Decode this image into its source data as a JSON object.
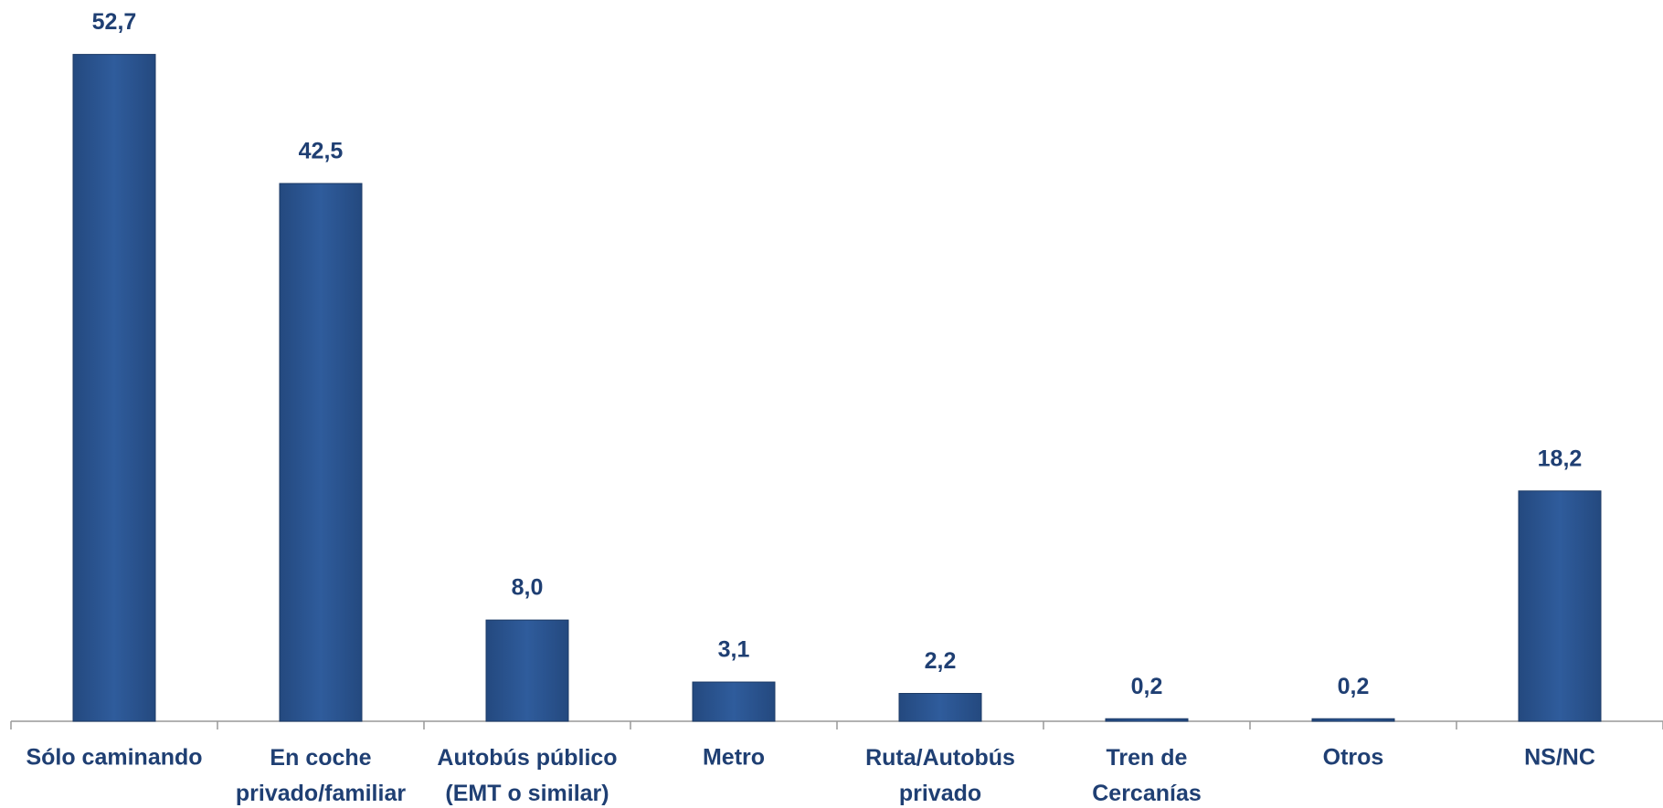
{
  "chart_data": {
    "type": "bar",
    "categories": [
      "Sólo caminando",
      "En coche\nprivado/familiar",
      "Autobús público\n(EMT o similar)",
      "Metro",
      "Ruta/Autobús\nprivado",
      "Tren de\nCercanías",
      "Otros",
      "NS/NC"
    ],
    "values": [
      52.7,
      42.5,
      8.0,
      3.1,
      2.2,
      0.2,
      0.2,
      18.2
    ],
    "value_labels": [
      "52,7",
      "42,5",
      "8,0",
      "3,1",
      "2,2",
      "0,2",
      "0,2",
      "18,2"
    ],
    "color": "#2b5592",
    "ylim": [
      0,
      57
    ]
  }
}
